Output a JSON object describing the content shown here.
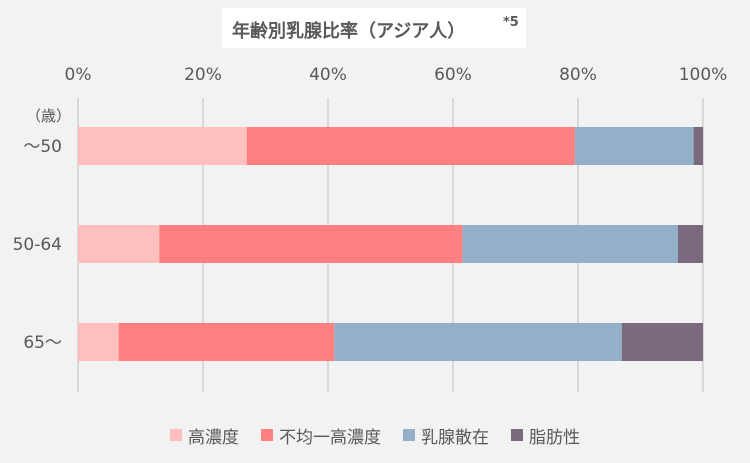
{
  "chart_data": {
    "type": "bar",
    "orientation": "horizontal-stacked-100",
    "title": "年齢別乳腺比率（アジア人）",
    "title_note": "*5",
    "unit_label": "（歳）",
    "categories": [
      "～50",
      "50-64",
      "65～"
    ],
    "x_ticks": [
      "0%",
      "20%",
      "40%",
      "60%",
      "80%",
      "100%"
    ],
    "xlim": [
      0,
      100
    ],
    "grid": true,
    "legend_position": "bottom",
    "series": [
      {
        "name": "高濃度",
        "color": "#ffbfbf",
        "values": [
          27,
          13,
          6.5
        ]
      },
      {
        "name": "不均一高濃度",
        "color": "#ff8080",
        "values": [
          52.5,
          48.5,
          34.5
        ]
      },
      {
        "name": "乳腺散在",
        "color": "#94b0c8",
        "values": [
          19,
          34.5,
          46
        ]
      },
      {
        "name": "脂肪性",
        "color": "#7b6a7e",
        "values": [
          1.5,
          4,
          13
        ]
      }
    ]
  }
}
